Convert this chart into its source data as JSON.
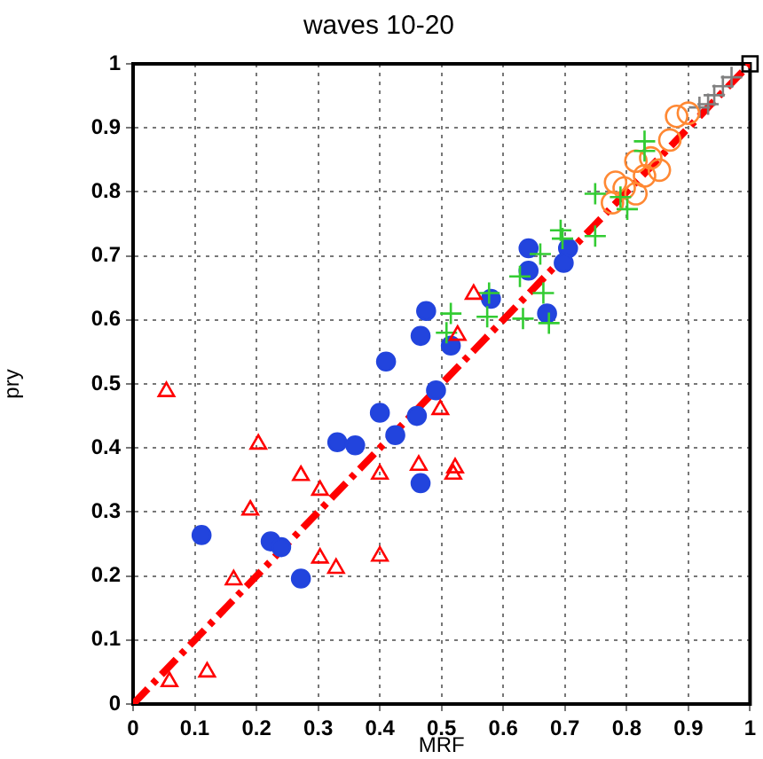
{
  "chart_data": {
    "type": "scatter",
    "title": "waves 10-20",
    "xlabel": "MRF",
    "ylabel": "pry",
    "xlim": [
      0,
      1
    ],
    "ylim": [
      0,
      1
    ],
    "xticks": [
      0,
      0.1,
      0.2,
      0.3,
      0.4,
      0.5,
      0.6,
      0.7,
      0.8,
      0.9,
      1
    ],
    "yticks": [
      0,
      0.1,
      0.2,
      0.3,
      0.4,
      0.5,
      0.6,
      0.7,
      0.8,
      0.9,
      1
    ],
    "grid": true,
    "legend": false,
    "series": [
      {
        "type": "line",
        "color": "#ff0000",
        "line_style": "dashdot",
        "marker": "none",
        "x": [
          0,
          1
        ],
        "values": [
          0,
          1
        ]
      },
      {
        "color": "#ff0000",
        "marker": "triangle",
        "x": [
          0.054,
          0.203,
          0.272,
          0.303,
          0.19,
          0.303,
          0.329,
          0.4,
          0.4,
          0.163,
          0.059,
          0.12,
          0.498,
          0.463,
          0.522,
          0.519,
          0.552,
          0.526
        ],
        "values": [
          0.488,
          0.406,
          0.357,
          0.334,
          0.303,
          0.228,
          0.212,
          0.231,
          0.359,
          0.194,
          0.035,
          0.05,
          0.46,
          0.373,
          0.369,
          0.359,
          0.64,
          0.576
        ]
      },
      {
        "color": "#2244dd",
        "marker": "circle",
        "x": [
          0.111,
          0.223,
          0.24,
          0.272,
          0.331,
          0.36,
          0.4,
          0.41,
          0.491,
          0.46,
          0.425,
          0.466,
          0.641,
          0.705,
          0.641,
          0.698,
          0.58,
          0.475,
          0.671,
          0.466,
          0.515
        ],
        "values": [
          0.264,
          0.254,
          0.245,
          0.196,
          0.409,
          0.404,
          0.455,
          0.535,
          0.49,
          0.45,
          0.42,
          0.345,
          0.712,
          0.712,
          0.677,
          0.689,
          0.633,
          0.614,
          0.61,
          0.575,
          0.56
        ]
      },
      {
        "color": "#33cc33",
        "marker": "cross",
        "x": [
          0.515,
          0.508,
          0.577,
          0.574,
          0.632,
          0.674,
          0.665,
          0.66,
          0.627,
          0.693,
          0.696,
          0.749,
          0.749,
          0.829,
          0.829,
          0.801,
          0.79
        ],
        "values": [
          0.61,
          0.58,
          0.642,
          0.605,
          0.602,
          0.595,
          0.642,
          0.703,
          0.668,
          0.74,
          0.727,
          0.731,
          0.797,
          0.879,
          0.864,
          0.773,
          0.792
        ]
      },
      {
        "color": "#ff8833",
        "marker": "circle_open",
        "x": [
          0.881,
          0.9,
          0.87,
          0.839,
          0.815,
          0.853,
          0.829,
          0.782,
          0.796,
          0.777,
          0.815
        ],
        "values": [
          0.918,
          0.923,
          0.881,
          0.853,
          0.848,
          0.834,
          0.825,
          0.815,
          0.806,
          0.783,
          0.797
        ]
      },
      {
        "color": "#808080",
        "marker": "cross",
        "x": [
          0.918,
          0.932,
          0.942,
          0.956,
          0.97
        ],
        "values": [
          0.932,
          0.937,
          0.951,
          0.965,
          0.979
        ]
      },
      {
        "color": "#000000",
        "marker": "square",
        "x": [
          1
        ],
        "values": [
          1
        ]
      }
    ]
  }
}
